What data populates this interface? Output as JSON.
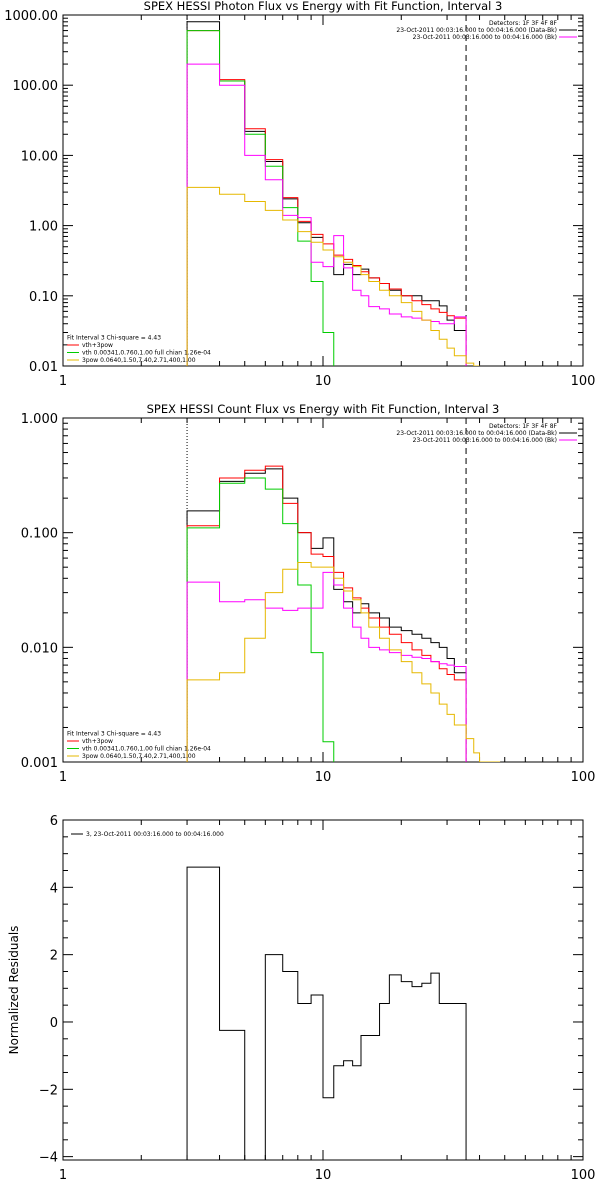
{
  "chart_data": [
    {
      "type": "line",
      "title": "SPEX HESSI Photon Flux vs Energy with Fit Function, Interval 3",
      "xlabel": "",
      "ylabel": "",
      "x_scale": "log",
      "y_scale": "log",
      "xlim": [
        1,
        100
      ],
      "ylim": [
        0.01,
        1000
      ],
      "x_ticks": [
        {
          "v": 1,
          "label": "1"
        },
        {
          "v": 10,
          "label": "10"
        },
        {
          "v": 100,
          "label": "100"
        }
      ],
      "y_ticks": [
        {
          "v": 0.01,
          "label": "0.01"
        },
        {
          "v": 0.1,
          "label": "0.10"
        },
        {
          "v": 1,
          "label": "1.00"
        },
        {
          "v": 10,
          "label": "10.00"
        },
        {
          "v": 100,
          "label": "100.00"
        },
        {
          "v": 1000,
          "label": "1000.00"
        }
      ],
      "vlines": [
        {
          "x": 3,
          "style": "dotted",
          "color": "#000000"
        },
        {
          "x": 35.5,
          "style": "dashed",
          "color": "#000000"
        }
      ],
      "legend_topright": [
        "Detectors: 1F 3F 4F 8F",
        "23-Oct-2011 00:03:16.000 to 00:04:16.000 (Data-Bk)",
        "23-Oct-2011 00:03:16.000 to 00:04:16.000 (Bk)"
      ],
      "legend_topright_colors": [
        "",
        "#000000",
        "#ff00ff"
      ],
      "legend_bottomleft": [
        "Fit Interval 3   Chi-square = 4.43",
        "vth+3pow",
        "vth 0.00341,0.760,1.00   full chian 1.26e-04",
        "3pow 0.0640,1.50,7.40,2.71,400,1.00"
      ],
      "legend_bottomleft_colors": [
        "",
        "#ff0000",
        "#00cc00",
        "#e6b800"
      ],
      "series": [
        {
          "color": "#000000",
          "edges": [
            3,
            4,
            5,
            6,
            7,
            8,
            9,
            10,
            11,
            12,
            13,
            14,
            15,
            16.5,
            18,
            20,
            22,
            24,
            26,
            28,
            30,
            32,
            35.5
          ],
          "values": [
            800,
            115,
            22,
            8.2,
            2.4,
            1.1,
            0.68,
            0.45,
            0.2,
            0.28,
            0.2,
            0.24,
            0.18,
            0.15,
            0.12,
            0.1,
            0.1,
            0.085,
            0.085,
            0.072,
            0.045,
            0.032
          ]
        },
        {
          "color": "#ff0000",
          "edges": [
            3,
            4,
            5,
            6,
            7,
            8,
            9,
            10,
            11,
            12,
            13,
            14,
            15,
            16.5,
            18,
            20,
            22,
            24,
            26,
            28,
            30,
            32,
            35.5
          ],
          "values": [
            600,
            120,
            24,
            8.7,
            2.5,
            1.15,
            0.75,
            0.55,
            0.38,
            0.33,
            0.27,
            0.22,
            0.18,
            0.15,
            0.125,
            0.1,
            0.085,
            0.075,
            0.065,
            0.058,
            0.052,
            0.048
          ]
        },
        {
          "color": "#00cc00",
          "edges": [
            3,
            4,
            5,
            6,
            7,
            8,
            9,
            10,
            11
          ],
          "values": [
            600,
            115,
            20,
            7,
            1.8,
            0.6,
            0.16,
            0.03
          ]
        },
        {
          "color": "#ff00ff",
          "edges": [
            3,
            4,
            5,
            6,
            7,
            8,
            9,
            10,
            11,
            12,
            13,
            14,
            15,
            16.5,
            18,
            20,
            22,
            24,
            26,
            28,
            30,
            32,
            35.5
          ],
          "values": [
            200,
            100,
            10,
            4.5,
            1.4,
            1.3,
            0.3,
            0.26,
            0.72,
            0.25,
            0.12,
            0.1,
            0.07,
            0.065,
            0.055,
            0.05,
            0.048,
            0.045,
            0.043,
            0.04,
            0.04,
            0.05
          ]
        },
        {
          "color": "#e6b800",
          "edges": [
            3,
            4,
            5,
            6,
            7,
            8,
            9,
            10,
            11,
            12,
            13,
            14,
            15,
            16.5,
            18,
            20,
            22,
            24,
            26,
            28,
            30,
            32,
            35.5,
            38,
            40
          ],
          "values": [
            3.5,
            2.8,
            2.2,
            1.65,
            1.2,
            0.82,
            0.58,
            0.45,
            0.36,
            0.3,
            0.26,
            0.2,
            0.16,
            0.12,
            0.1,
            0.08,
            0.06,
            0.045,
            0.032,
            0.024,
            0.018,
            0.014,
            0.011,
            0.008
          ]
        }
      ]
    },
    {
      "type": "line",
      "title": "SPEX HESSI Count Flux vs Energy with Fit Function, Interval 3",
      "xlabel": "",
      "ylabel": "",
      "x_scale": "log",
      "y_scale": "log",
      "xlim": [
        1,
        100
      ],
      "ylim": [
        0.001,
        1
      ],
      "x_ticks": [
        {
          "v": 1,
          "label": "1"
        },
        {
          "v": 10,
          "label": "10"
        },
        {
          "v": 100,
          "label": "100"
        }
      ],
      "y_ticks": [
        {
          "v": 0.001,
          "label": "0.001"
        },
        {
          "v": 0.01,
          "label": "0.010"
        },
        {
          "v": 0.1,
          "label": "0.100"
        },
        {
          "v": 1,
          "label": "1.000"
        }
      ],
      "vlines": [
        {
          "x": 3,
          "style": "dotted",
          "color": "#000000"
        },
        {
          "x": 35.5,
          "style": "dashed",
          "color": "#000000"
        }
      ],
      "legend_topright": [
        "Detectors: 1F 3F 4F 8F",
        "23-Oct-2011 00:03:16.000 to 00:04:16.000 (Data-Bk)",
        "23-Oct-2011 00:03:16.000 to 00:04:16.000 (Bk)"
      ],
      "legend_topright_colors": [
        "",
        "#000000",
        "#ff00ff"
      ],
      "legend_bottomleft": [
        "Fit Interval 3   Chi-square = 4.43",
        "vth+3pow",
        "vth 0.00341,0.760,1.00   full chian 1.26e-04",
        "3pow 0.0640,1.50,7.40,2.71,400,1.00"
      ],
      "legend_bottomleft_colors": [
        "",
        "#ff0000",
        "#00cc00",
        "#e6b800"
      ],
      "series": [
        {
          "color": "#000000",
          "edges": [
            3,
            4,
            5,
            6,
            7,
            8,
            9,
            10,
            11,
            12,
            13,
            14,
            15,
            16.5,
            18,
            20,
            22,
            24,
            26,
            28,
            30,
            32,
            35.5
          ],
          "values": [
            0.155,
            0.28,
            0.33,
            0.36,
            0.2,
            0.1,
            0.073,
            0.09,
            0.032,
            0.025,
            0.02,
            0.024,
            0.02,
            0.018,
            0.015,
            0.014,
            0.013,
            0.012,
            0.011,
            0.01,
            0.008,
            0.006
          ]
        },
        {
          "color": "#ff0000",
          "edges": [
            3,
            4,
            5,
            6,
            7,
            8,
            9,
            10,
            11,
            12,
            13,
            14,
            15,
            16.5,
            18,
            20,
            22,
            24,
            26,
            28,
            30,
            32,
            35.5
          ],
          "values": [
            0.115,
            0.3,
            0.35,
            0.38,
            0.18,
            0.1,
            0.065,
            0.062,
            0.045,
            0.033,
            0.027,
            0.022,
            0.018,
            0.015,
            0.013,
            0.011,
            0.0095,
            0.0085,
            0.0075,
            0.0065,
            0.0058,
            0.0052
          ]
        },
        {
          "color": "#00cc00",
          "edges": [
            3,
            4,
            5,
            6,
            7,
            8,
            9,
            10,
            11
          ],
          "values": [
            0.11,
            0.27,
            0.3,
            0.24,
            0.12,
            0.035,
            0.009,
            0.0015
          ]
        },
        {
          "color": "#ff00ff",
          "edges": [
            3,
            4,
            5,
            6,
            7,
            8,
            9,
            10,
            11,
            12,
            13,
            14,
            15,
            16.5,
            18,
            20,
            22,
            24,
            26,
            28,
            30,
            32,
            35.5
          ],
          "values": [
            0.037,
            0.025,
            0.026,
            0.022,
            0.021,
            0.022,
            0.022,
            0.045,
            0.035,
            0.022,
            0.015,
            0.012,
            0.01,
            0.0095,
            0.009,
            0.0085,
            0.0082,
            0.008,
            0.0075,
            0.0072,
            0.007,
            0.0068
          ]
        },
        {
          "color": "#e6b800",
          "edges": [
            3,
            4,
            5,
            6,
            7,
            8,
            9,
            10,
            11,
            12,
            13,
            14,
            15,
            16.5,
            18,
            20,
            22,
            24,
            26,
            28,
            30,
            32,
            35.5,
            38,
            40,
            44,
            48
          ],
          "values": [
            0.0052,
            0.006,
            0.012,
            0.03,
            0.048,
            0.055,
            0.05,
            0.05,
            0.04,
            0.031,
            0.026,
            0.02,
            0.015,
            0.012,
            0.0095,
            0.0075,
            0.006,
            0.0048,
            0.004,
            0.0032,
            0.0026,
            0.0021,
            0.0016,
            0.0012,
            0.001,
            0.0008
          ]
        }
      ]
    },
    {
      "type": "line",
      "title": "",
      "xlabel": "",
      "ylabel": "Normalized Residuals",
      "x_scale": "log",
      "y_scale": "linear",
      "xlim": [
        1,
        100
      ],
      "ylim": [
        -4.1,
        6
      ],
      "x_ticks": [
        {
          "v": 1,
          "label": "1"
        },
        {
          "v": 10,
          "label": "10"
        },
        {
          "v": 100,
          "label": "100"
        }
      ],
      "y_ticks": [
        {
          "v": -4,
          "label": "−4"
        },
        {
          "v": -2,
          "label": "−2"
        },
        {
          "v": 0,
          "label": "0"
        },
        {
          "v": 2,
          "label": "2"
        },
        {
          "v": 4,
          "label": "4"
        },
        {
          "v": 6,
          "label": "6"
        }
      ],
      "vlines": [],
      "legend_topright": [],
      "legend_topright_colors": [],
      "legend_bottomleft": [],
      "legend_bottomleft_colors": [],
      "legend_topleft": [
        "3, 23-Oct-2011 00:03:16.000 to 00:04:16.000"
      ],
      "series": [
        {
          "color": "#000000",
          "edges": [
            3,
            4,
            5,
            6,
            7,
            8,
            9,
            10,
            11,
            12,
            13,
            14,
            15,
            16.5,
            18,
            20,
            22,
            24,
            26,
            28,
            30,
            32,
            35.5
          ],
          "values": [
            4.6,
            -0.25,
            -4.1,
            2.0,
            1.5,
            0.55,
            0.8,
            -2.25,
            -1.3,
            -1.15,
            -1.3,
            -0.4,
            -0.4,
            0.55,
            1.4,
            1.2,
            1.05,
            1.15,
            1.45,
            0.55,
            0.55,
            0.55
          ]
        }
      ]
    }
  ]
}
